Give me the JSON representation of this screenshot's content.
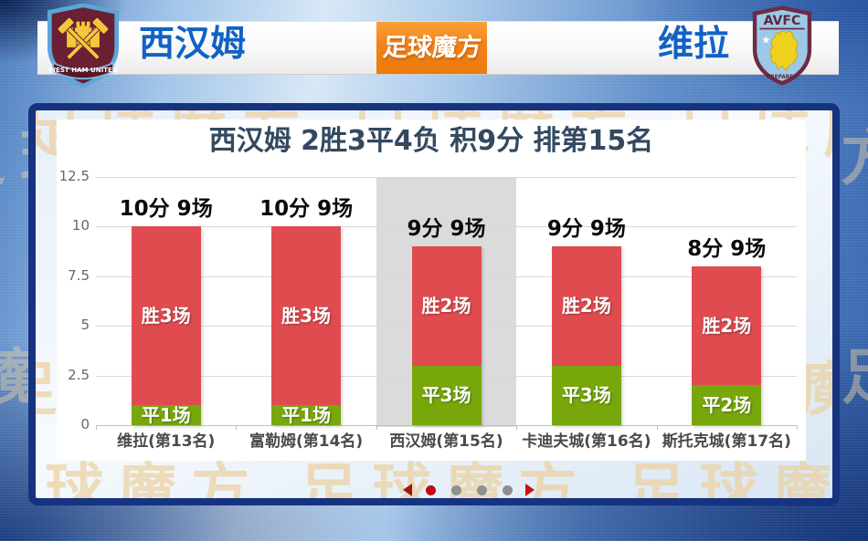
{
  "header": {
    "left_team": "西汉姆",
    "right_team": "维拉",
    "logo_text": "足球魔方",
    "left_badge": {
      "name": "West Ham United crest",
      "ribbon_text": "WEST HAM UNITED"
    },
    "right_badge": {
      "name": "Aston Villa crest",
      "top_text": "AVFC",
      "bottom_text": "PREPARED"
    }
  },
  "watermark_text": "足球魔方 足球魔方 足球魔方 足球魔方",
  "chart_data": {
    "type": "bar",
    "stacked": true,
    "title": "西汉姆 2胜3平4负 积9分 排第15名",
    "categories": [
      "维拉(第13名)",
      "富勒姆(第14名)",
      "西汉姆(第15名)",
      "卡迪夫城(第16名)",
      "斯托克城(第17名)"
    ],
    "series": [
      {
        "name": "draw-points",
        "color": "#77a70b",
        "values": [
          1,
          1,
          3,
          3,
          2
        ],
        "labels": [
          "平1场",
          "平1场",
          "平3场",
          "平3场",
          "平2场"
        ]
      },
      {
        "name": "win-points",
        "color": "#e04b50",
        "values": [
          9,
          9,
          6,
          6,
          6
        ],
        "labels": [
          "胜3场",
          "胜3场",
          "胜2场",
          "胜2场",
          "胜2场"
        ]
      }
    ],
    "totals_annotations": [
      "10分 9场",
      "10分 9场",
      "9分 9场",
      "9分 9场",
      "8分 9场"
    ],
    "ylim": [
      0,
      12.5
    ],
    "yticks": [
      "0",
      "2.5",
      "5",
      "7.5",
      "10",
      "12.5"
    ],
    "grid": true,
    "legend": false,
    "highlighted_index": 2,
    "highlight_color": "#dbdbdb"
  },
  "pagination": {
    "dots": 4,
    "active_index": 0,
    "active_color": "#c00c0c",
    "inactive_color": "#8f8f8f"
  }
}
